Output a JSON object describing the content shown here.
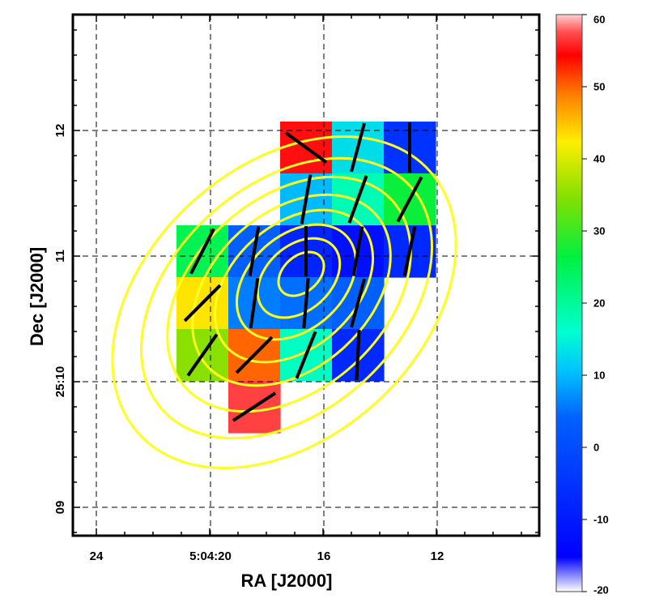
{
  "chart_data": {
    "type": "heatmap",
    "xlabel": "RA [J2000]",
    "ylabel": "Dec [J2000]",
    "x_ticks": [
      "24",
      "5:04:20",
      "16",
      "12"
    ],
    "y_ticks": [
      "12",
      "11",
      "25:10",
      "09"
    ],
    "grid": true,
    "colorbar": {
      "ticks": [
        60,
        50,
        40,
        30,
        20,
        10,
        0,
        -10,
        -20
      ],
      "range": [
        -20,
        60
      ]
    },
    "pixels": [
      {
        "col": 4,
        "row": 0,
        "value": 55
      },
      {
        "col": 5,
        "row": 0,
        "value": 13
      },
      {
        "col": 6,
        "row": 0,
        "value": -5
      },
      {
        "col": 4,
        "row": 1,
        "value": 10
      },
      {
        "col": 5,
        "row": 1,
        "value": 18
      },
      {
        "col": 6,
        "row": 1,
        "value": 27
      },
      {
        "col": 2,
        "row": 2,
        "value": 25
      },
      {
        "col": 3,
        "row": 2,
        "value": 4
      },
      {
        "col": 4,
        "row": 2,
        "value": -8
      },
      {
        "col": 5,
        "row": 2,
        "value": -12
      },
      {
        "col": 6,
        "row": 2,
        "value": -7
      },
      {
        "col": 2,
        "row": 3,
        "value": 43
      },
      {
        "col": 3,
        "row": 3,
        "value": 6
      },
      {
        "col": 4,
        "row": 3,
        "value": 5
      },
      {
        "col": 5,
        "row": 3,
        "value": 4
      },
      {
        "col": 2,
        "row": 4,
        "value": 35
      },
      {
        "col": 3,
        "row": 4,
        "value": 50
      },
      {
        "col": 4,
        "row": 4,
        "value": 17
      },
      {
        "col": 5,
        "row": 4,
        "value": -7
      },
      {
        "col": 3,
        "row": 5,
        "value": 57
      }
    ],
    "vectors": [
      {
        "col": 4,
        "row": 0,
        "angle_deg": 126
      },
      {
        "col": 5,
        "row": 0,
        "angle_deg": 15
      },
      {
        "col": 6,
        "row": 0,
        "angle_deg": 0
      },
      {
        "col": 4,
        "row": 1,
        "angle_deg": 10
      },
      {
        "col": 5,
        "row": 1,
        "angle_deg": 20
      },
      {
        "col": 6,
        "row": 1,
        "angle_deg": 28
      },
      {
        "col": 2,
        "row": 2,
        "angle_deg": 27
      },
      {
        "col": 3,
        "row": 2,
        "angle_deg": 10
      },
      {
        "col": 4,
        "row": 2,
        "angle_deg": 0
      },
      {
        "col": 5,
        "row": 2,
        "angle_deg": 10
      },
      {
        "col": 6,
        "row": 2,
        "angle_deg": 12
      },
      {
        "col": 2,
        "row": 3,
        "angle_deg": 45
      },
      {
        "col": 3,
        "row": 3,
        "angle_deg": 8
      },
      {
        "col": 4,
        "row": 3,
        "angle_deg": 5
      },
      {
        "col": 5,
        "row": 3,
        "angle_deg": 15
      },
      {
        "col": 2,
        "row": 4,
        "angle_deg": 35
      },
      {
        "col": 3,
        "row": 4,
        "angle_deg": 45
      },
      {
        "col": 4,
        "row": 4,
        "angle_deg": 22
      },
      {
        "col": 5,
        "row": 4,
        "angle_deg": 3
      },
      {
        "col": 3,
        "row": 5,
        "angle_deg": 57
      }
    ],
    "contours": {
      "color": "#ffff22",
      "levels": 8
    }
  }
}
